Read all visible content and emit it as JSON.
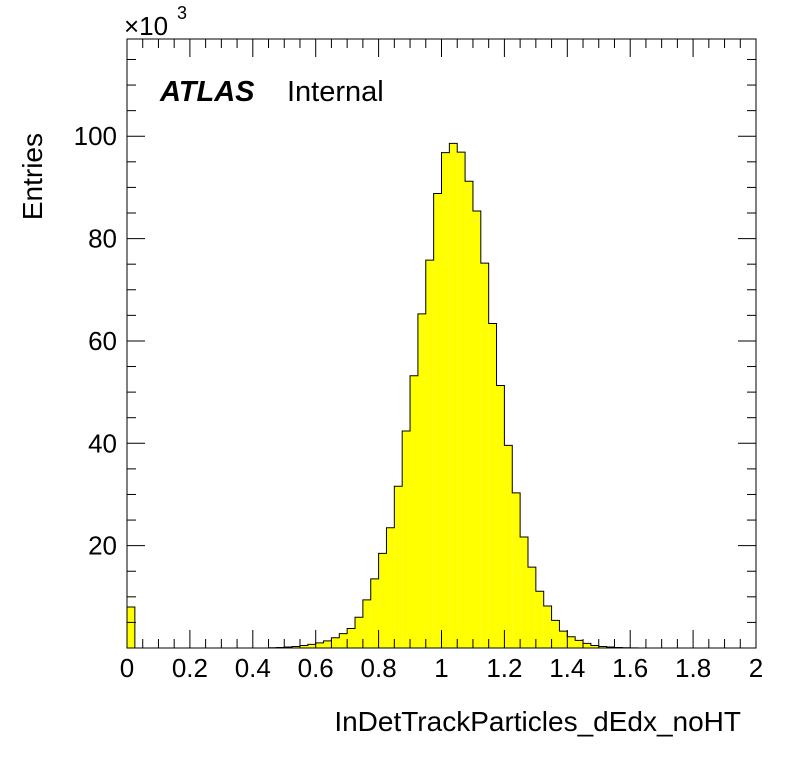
{
  "chart_data": {
    "type": "bar",
    "style": "histogram",
    "xlabel": "InDetTrackParticles_dEdx_noHT",
    "ylabel": "Entries",
    "y_multiplier_label": "×10",
    "y_multiplier_exponent": "3",
    "atlas_label": "ATLAS",
    "atlas_sublabel": "Internal",
    "xlim": [
      0,
      2
    ],
    "ylim": [
      0,
      119
    ],
    "x_ticks": [
      "0",
      "0.2",
      "0.4",
      "0.6",
      "0.8",
      "1",
      "1.2",
      "1.4",
      "1.6",
      "1.8",
      "2"
    ],
    "y_ticks": [
      "20",
      "40",
      "60",
      "80",
      "100"
    ],
    "bin_width": 0.025,
    "bin_low_edges": [
      0,
      0.025,
      0.05,
      0.075,
      0.1,
      0.125,
      0.15,
      0.175,
      0.2,
      0.225,
      0.25,
      0.275,
      0.3,
      0.325,
      0.35,
      0.375,
      0.4,
      0.425,
      0.45,
      0.475,
      0.5,
      0.525,
      0.55,
      0.575,
      0.6,
      0.625,
      0.65,
      0.675,
      0.7,
      0.725,
      0.75,
      0.775,
      0.8,
      0.825,
      0.85,
      0.875,
      0.9,
      0.925,
      0.95,
      0.975,
      1.0,
      1.025,
      1.05,
      1.075,
      1.1,
      1.125,
      1.15,
      1.175,
      1.2,
      1.225,
      1.25,
      1.275,
      1.3,
      1.325,
      1.35,
      1.375,
      1.4,
      1.425,
      1.45,
      1.475,
      1.5,
      1.525,
      1.55,
      1.575,
      1.6,
      1.625,
      1.65,
      1.675,
      1.7,
      1.725,
      1.75,
      1.775,
      1.8,
      1.825,
      1.85,
      1.875,
      1.9,
      1.925,
      1.95,
      1.975
    ],
    "values": [
      8,
      0,
      0,
      0,
      0,
      0,
      0,
      0,
      0,
      0,
      0,
      0,
      0,
      0,
      0,
      0,
      0,
      0,
      0.05,
      0.1,
      0.2,
      0.3,
      0.5,
      0.7,
      1.0,
      1.4,
      2.0,
      2.8,
      3.8,
      6.0,
      9.4,
      13.5,
      18.5,
      23.5,
      31.6,
      42.4,
      53.2,
      65.3,
      75.8,
      88.8,
      96.8,
      98.6,
      96.9,
      91.2,
      85.4,
      75.2,
      63.4,
      51.3,
      39.6,
      30.3,
      21.7,
      15.8,
      11.1,
      8.2,
      5.4,
      3.3,
      2.2,
      1.5,
      0.9,
      0.5,
      0.3,
      0.2,
      0.1,
      0.05,
      0.03,
      0,
      0,
      0,
      0,
      0,
      0,
      0,
      0,
      0,
      0,
      0,
      0,
      0,
      0,
      0
    ],
    "colors": {
      "fill": "#ffff00",
      "line": "#000000"
    },
    "legend": "none",
    "grid": false
  }
}
